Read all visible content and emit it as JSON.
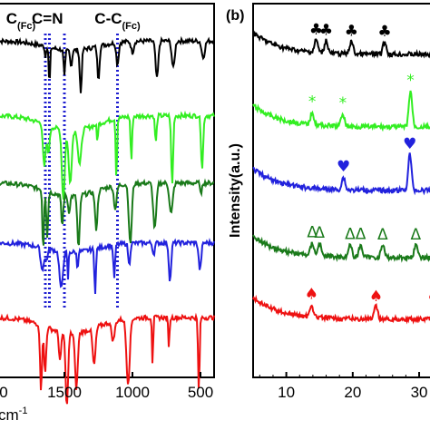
{
  "chart_data": [
    {
      "type": "line",
      "panel_label": "",
      "xlabel": "cm-1",
      "xlabel_parts": {
        "prefix": "cm",
        "superscript": "-1"
      },
      "x_ticks": [
        "1500",
        "1000",
        "500"
      ],
      "x_tick_values": [
        1500,
        1000,
        500
      ],
      "x_left_tick_partial": "0",
      "xlim": [
        2000,
        400
      ],
      "x_reversed": true,
      "annotations": [
        {
          "text": "C",
          "sub": "(Fc)",
          "x": 1820
        },
        {
          "text": "C=N",
          "x": 1625
        },
        {
          "text": "C-C",
          "sub": "(Fc)",
          "x": 1110
        }
      ],
      "dotted_guides_x": [
        1640,
        1610,
        1500,
        1110
      ],
      "guide_color": "#1f1fd0",
      "series": [
        {
          "color": "#000000",
          "offset": 0.9,
          "depth": 0.1
        },
        {
          "color": "#33ee22",
          "offset": 0.7,
          "depth": 0.16
        },
        {
          "color": "#1a7a1a",
          "offset": 0.52,
          "depth": 0.14
        },
        {
          "color": "#2222dd",
          "offset": 0.36,
          "depth": 0.1
        },
        {
          "color": "#ee1111",
          "offset": 0.16,
          "depth": 0.17
        }
      ]
    },
    {
      "type": "line",
      "panel_label": "(b)",
      "ylabel": "Intensity(a.u.)",
      "x_ticks": [
        "10",
        "20",
        "30"
      ],
      "x_tick_values": [
        10,
        20,
        30
      ],
      "xlim": [
        5,
        33
      ],
      "series": [
        {
          "color": "#000000",
          "markers": [
            {
              "symbol": "♣",
              "x": 14.5
            },
            {
              "symbol": "♣",
              "x": 16.0
            },
            {
              "symbol": "♣",
              "x": 19.8
            },
            {
              "symbol": "♣",
              "x": 24.8
            }
          ],
          "peaks": [
            14.5,
            16.0,
            19.8,
            24.8
          ]
        },
        {
          "color": "#33ee22",
          "markers": [
            {
              "symbol": "*",
              "x": 13.9
            },
            {
              "symbol": "*",
              "x": 18.5
            },
            {
              "symbol": "*",
              "x": 28.7
            }
          ],
          "peaks": [
            13.9,
            18.5,
            28.7
          ]
        },
        {
          "color": "#2222dd",
          "markers": [
            {
              "symbol": "♥",
              "x": 18.6
            },
            {
              "symbol": "♥",
              "x": 28.6
            }
          ],
          "peaks": [
            18.6,
            28.6
          ]
        },
        {
          "color": "#1a7a1a",
          "markers": [
            {
              "symbol": "Δ",
              "x": 13.9
            },
            {
              "symbol": "Δ",
              "x": 15.0
            },
            {
              "symbol": "Δ",
              "x": 19.6
            },
            {
              "symbol": "Δ",
              "x": 21.2
            },
            {
              "symbol": "Δ",
              "x": 24.5
            },
            {
              "symbol": "Δ",
              "x": 29.5
            }
          ],
          "peaks": [
            13.9,
            15.0,
            19.6,
            21.2,
            24.5,
            29.5
          ]
        },
        {
          "color": "#ee1111",
          "markers": [
            {
              "symbol": "♠",
              "x": 13.8
            },
            {
              "symbol": "♠",
              "x": 23.5
            },
            {
              "symbol": "♠",
              "x": 32.2
            }
          ],
          "peaks": [
            13.8,
            23.5,
            32.2
          ]
        }
      ]
    }
  ]
}
